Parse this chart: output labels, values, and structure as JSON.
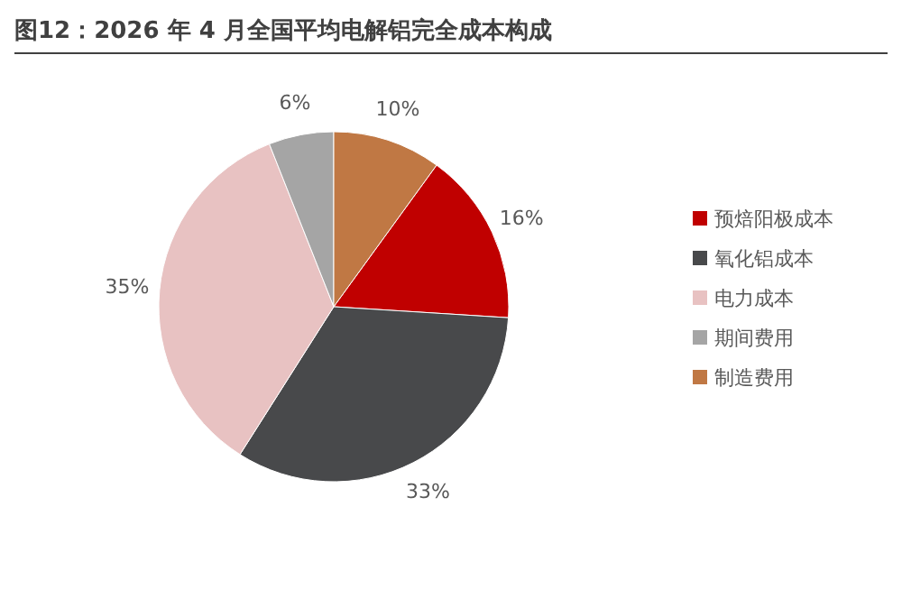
{
  "chart_data": {
    "type": "pie",
    "title": "图12：2026 年 4 月全国平均电解铝完全成本构成",
    "categories": [
      "预焙阳极成本",
      "氧化铝成本",
      "电力成本",
      "期间费用",
      "制造费用"
    ],
    "values": [
      16,
      33,
      35,
      6,
      10
    ],
    "colors": [
      "#c00000",
      "#48494b",
      "#e8c2c2",
      "#a5a5a5",
      "#c07844"
    ],
    "value_labels": [
      "16%",
      "33%",
      "35%",
      "6%",
      "10%"
    ],
    "legend": "right"
  }
}
